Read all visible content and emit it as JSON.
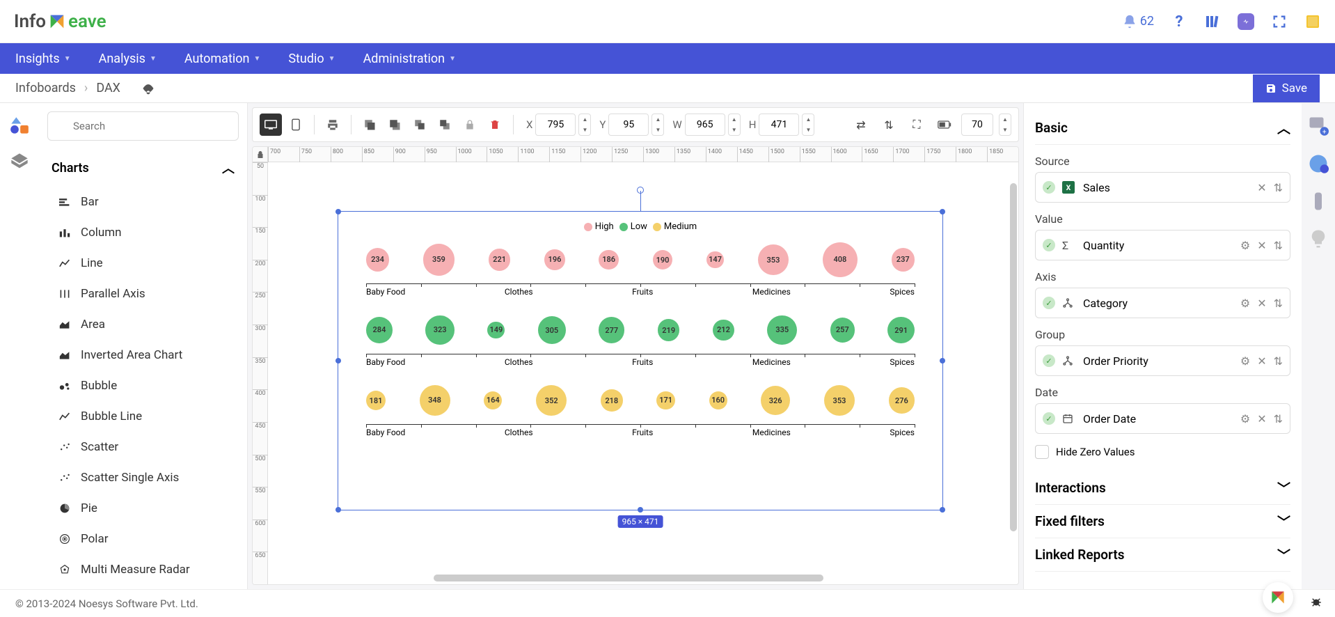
{
  "app": {
    "name_part1": "Info",
    "name_part2": "eave"
  },
  "notifications": {
    "count": "62"
  },
  "nav": {
    "items": [
      "Insights",
      "Analysis",
      "Automation",
      "Studio",
      "Administration"
    ]
  },
  "breadcrumb": {
    "root": "Infoboards",
    "page": "DAX"
  },
  "save_label": "Save",
  "search": {
    "placeholder": "Search"
  },
  "charts_section": {
    "title": "Charts"
  },
  "chart_types": [
    {
      "label": "Bar",
      "icon": "bar"
    },
    {
      "label": "Column",
      "icon": "column"
    },
    {
      "label": "Line",
      "icon": "line"
    },
    {
      "label": "Parallel Axis",
      "icon": "parallel"
    },
    {
      "label": "Area",
      "icon": "area"
    },
    {
      "label": "Inverted Area Chart",
      "icon": "area"
    },
    {
      "label": "Bubble",
      "icon": "bubble"
    },
    {
      "label": "Bubble Line",
      "icon": "line"
    },
    {
      "label": "Scatter",
      "icon": "scatter"
    },
    {
      "label": "Scatter Single Axis",
      "icon": "scatter"
    },
    {
      "label": "Pie",
      "icon": "pie"
    },
    {
      "label": "Polar",
      "icon": "polar"
    },
    {
      "label": "Multi Measure Radar",
      "icon": "radar"
    }
  ],
  "toolbar": {
    "x": "795",
    "y": "95",
    "w": "965",
    "h": "471",
    "extra": "70"
  },
  "ruler": {
    "h_start": 700,
    "h_end": 1900,
    "h_step": 50,
    "v_start": 50,
    "v_end": 700,
    "v_step": 50
  },
  "selection": {
    "size_w": "965",
    "size_h": "471"
  },
  "chart": {
    "type": "bubble-scatter-single-axis",
    "legend": [
      {
        "label": "High",
        "color": "#f6b0b3"
      },
      {
        "label": "Low",
        "color": "#56c27a"
      },
      {
        "label": "Medium",
        "color": "#f4d06a"
      }
    ],
    "categories": [
      "Baby Food",
      "Clothes",
      "Fruits",
      "Medicines",
      "Spices"
    ],
    "series": [
      {
        "name": "High",
        "color": "#f6b0b3",
        "values": [
          234,
          359,
          221,
          196,
          186,
          190,
          147,
          353,
          408,
          237
        ]
      },
      {
        "name": "Low",
        "color": "#56c27a",
        "values": [
          284,
          323,
          149,
          305,
          277,
          219,
          212,
          335,
          257,
          291
        ]
      },
      {
        "name": "Medium",
        "color": "#f4d06a",
        "values": [
          181,
          348,
          164,
          352,
          218,
          171,
          160,
          326,
          353,
          276
        ]
      }
    ],
    "bubble_min_size": 24,
    "bubble_max_size": 50,
    "value_min": 140,
    "value_max": 410
  },
  "props": {
    "basic_title": "Basic",
    "source_label": "Source",
    "source_value": "Sales",
    "value_label": "Value",
    "value_value": "Quantity",
    "axis_label": "Axis",
    "axis_value": "Category",
    "group_label": "Group",
    "group_value": "Order Priority",
    "date_label": "Date",
    "date_value": "Order Date",
    "hide_zero_label": "Hide Zero Values",
    "interactions_title": "Interactions",
    "fixed_filters_title": "Fixed filters",
    "linked_reports_title": "Linked Reports"
  },
  "footer": {
    "copyright": "© 2013-2024 Noesys Software Pvt. Ltd."
  }
}
